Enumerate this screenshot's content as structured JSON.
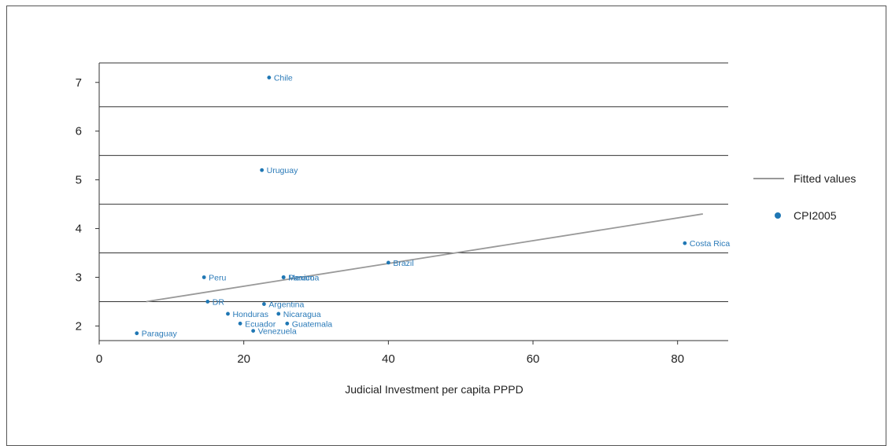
{
  "chart_data": {
    "type": "scatter",
    "title": "",
    "xlabel": "Judicial Investment per capita PPPD",
    "ylabel": "",
    "xlim": [
      0,
      87
    ],
    "ylim": [
      1.7,
      7.4
    ],
    "x_ticks": [
      0,
      20,
      40,
      60,
      80
    ],
    "y_ticks": [
      2,
      3,
      4,
      5,
      6,
      7
    ],
    "grid": true,
    "legend_position": "right",
    "colors": {
      "points": "#1f77b4",
      "fitted": "#999999"
    },
    "series": [
      {
        "name": "CPI2005",
        "kind": "scatter",
        "points": [
          {
            "label": "Chile",
            "x": 23.5,
            "y": 7.1
          },
          {
            "label": "Uruguay",
            "x": 22.5,
            "y": 5.2
          },
          {
            "label": "Costa Rica",
            "x": 81.0,
            "y": 3.7
          },
          {
            "label": "Brazil",
            "x": 40.0,
            "y": 3.3
          },
          {
            "label": "Peru",
            "x": 14.5,
            "y": 3.0
          },
          {
            "label": "Panama",
            "x": 25.5,
            "y": 3.0
          },
          {
            "label": "Mexico",
            "x": 25.5,
            "y": 3.0
          },
          {
            "label": "DR",
            "x": 15.0,
            "y": 2.5
          },
          {
            "label": "Argentina",
            "x": 22.8,
            "y": 2.45
          },
          {
            "label": "Honduras",
            "x": 17.8,
            "y": 2.25
          },
          {
            "label": "Nicaragua",
            "x": 24.8,
            "y": 2.25
          },
          {
            "label": "Ecuador",
            "x": 19.5,
            "y": 2.05
          },
          {
            "label": "Guatemala",
            "x": 26.0,
            "y": 2.05
          },
          {
            "label": "Venezuela",
            "x": 21.3,
            "y": 1.9
          },
          {
            "label": "Paraguay",
            "x": 5.2,
            "y": 1.85
          }
        ]
      },
      {
        "name": "Fitted values",
        "kind": "line",
        "points": [
          {
            "x": 6.5,
            "y": 2.5
          },
          {
            "x": 83.5,
            "y": 4.3
          }
        ]
      }
    ],
    "legend": [
      "Fitted values",
      "CPI2005"
    ]
  }
}
